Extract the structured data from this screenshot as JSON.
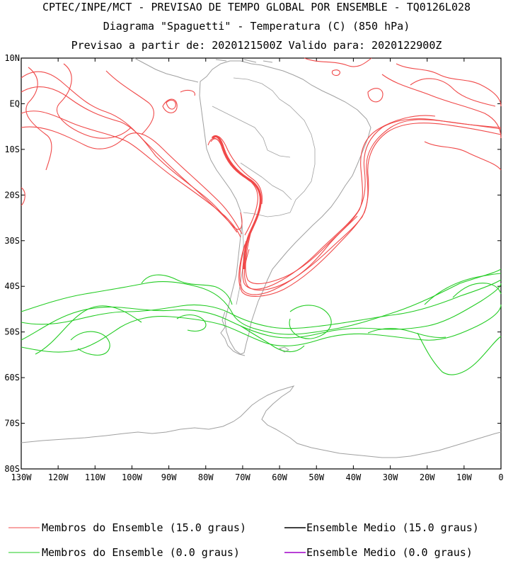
{
  "title": {
    "line1": "CPTEC/INPE/MCT - PREVISAO DE TEMPO GLOBAL POR ENSEMBLE - TQ0126L028",
    "line2": "Diagrama \"Spaguetti\" - Temperatura (C) (850 hPa)",
    "line3": "Previsao a partir de: 2020121500Z  Valido para: 2020122900Z"
  },
  "axes": {
    "lat_labels": [
      "10N",
      "EQ",
      "10S",
      "20S",
      "30S",
      "40S",
      "50S",
      "60S",
      "70S",
      "80S"
    ],
    "lon_labels": [
      "130W",
      "120W",
      "110W",
      "100W",
      "90W",
      "80W",
      "70W",
      "60W",
      "50W",
      "40W",
      "30W",
      "20W",
      "10W",
      "0"
    ],
    "lat_range": [
      -80,
      10
    ],
    "lon_range": [
      -130,
      0
    ]
  },
  "legend": {
    "red_members": "Membros do Ensemble (15.0 graus)",
    "black_mean": "Ensemble Medio (15.0 graus)",
    "green_members": "Membros do Ensemble (0.0 graus)",
    "purple_mean": "Ensemble Medio (0.0 graus)"
  },
  "colors": {
    "red": "#f04848",
    "green": "#22cc22",
    "black": "#000000",
    "purple": "#a000c8",
    "coast": "#a0a0a0",
    "border": "#a0a0a0"
  }
}
